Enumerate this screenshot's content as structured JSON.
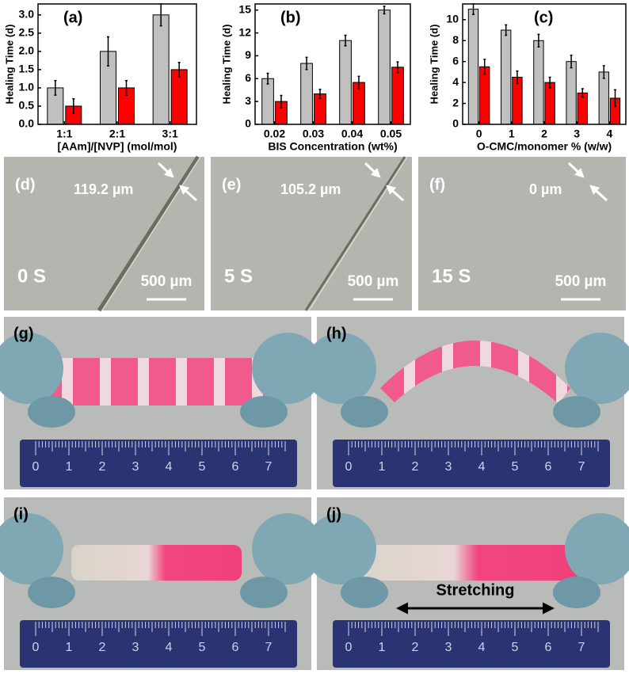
{
  "chart_data": [
    {
      "type": "bar",
      "panel_label": "(a)",
      "y_label": "Healing Time (d)",
      "x_label": "[AAm]/[NVP] (mol/mol)",
      "categories": [
        "1:1",
        "2:1",
        "3:1"
      ],
      "series": [
        {
          "color": "#c0c0c0",
          "values": [
            1.0,
            2.0,
            3.0
          ],
          "errors": [
            0.2,
            0.4,
            0.3
          ]
        },
        {
          "color": "#ff0000",
          "values": [
            0.5,
            1.0,
            1.5
          ],
          "errors": [
            0.2,
            0.2,
            0.2
          ]
        }
      ],
      "ylim": [
        0,
        3.3
      ],
      "yticks": [
        {
          "value": 0,
          "label": "0.0"
        },
        0.5,
        {
          "value": 1,
          "label": "1.0"
        },
        1.5,
        {
          "value": 2,
          "label": "2.0"
        },
        2.5,
        {
          "value": 3,
          "label": "3.0"
        }
      ]
    },
    {
      "type": "bar",
      "panel_label": "(b)",
      "y_label": "Healing Time (d)",
      "x_label": "BIS Concentration (wt%)",
      "categories": [
        "0.02",
        "0.03",
        "0.04",
        "0.05"
      ],
      "series": [
        {
          "color": "#c0c0c0",
          "values": [
            6,
            8,
            11,
            15
          ],
          "errors": [
            0.7,
            0.8,
            0.7,
            0.5
          ]
        },
        {
          "color": "#ff0000",
          "values": [
            3,
            4,
            5.5,
            7.5
          ],
          "errors": [
            0.8,
            0.6,
            0.8,
            0.7
          ]
        }
      ],
      "ylim": [
        0,
        15.8
      ],
      "yticks": [
        0,
        3,
        6,
        9,
        12,
        15
      ]
    },
    {
      "type": "bar",
      "panel_label": "(c)",
      "y_label": "Healing Time (d)",
      "x_label": "O-CMC/monomer % (w/w)",
      "categories": [
        "0",
        "1",
        "2",
        "3",
        "4"
      ],
      "series": [
        {
          "color": "#c0c0c0",
          "values": [
            11,
            9,
            8,
            6,
            5
          ],
          "errors": [
            0.5,
            0.5,
            0.6,
            0.6,
            0.6
          ]
        },
        {
          "color": "#ff0000",
          "values": [
            5.5,
            4.5,
            4,
            3,
            2.5
          ],
          "errors": [
            0.7,
            0.6,
            0.5,
            0.4,
            0.8
          ]
        }
      ],
      "ylim": [
        0,
        11.5
      ],
      "yticks": [
        0,
        2,
        4,
        6,
        8,
        10
      ]
    }
  ],
  "micrographs": [
    {
      "label": "(d)",
      "gap": "119.2 µm",
      "time": "0 S",
      "scale": "500 µm"
    },
    {
      "label": "(e)",
      "gap": "105.2 µm",
      "time": "5 S",
      "scale": "500 µm"
    },
    {
      "label": "(f)",
      "gap": "0 µm",
      "time": "15 S",
      "scale": "500 µm"
    }
  ],
  "photos": [
    {
      "label": "(g)"
    },
    {
      "label": "(h)"
    },
    {
      "label": "(i)"
    },
    {
      "label": "(j)",
      "annotation": "Stretching"
    }
  ],
  "ruler": [
    0,
    1,
    2,
    3,
    4,
    5,
    6,
    7
  ]
}
